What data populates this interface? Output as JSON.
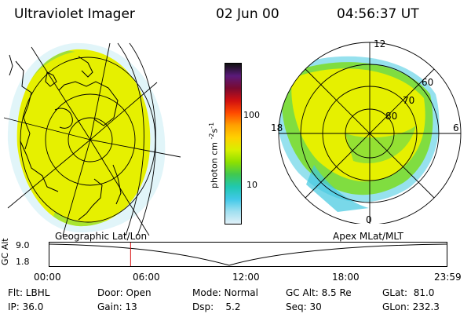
{
  "header": {
    "title": "Ultraviolet Imager",
    "date": "02 Jun 00",
    "time": "04:56:37 UT"
  },
  "colorbar": {
    "unit_label": "photon cm",
    "unit_exp1": "-2",
    "unit_s": "s",
    "unit_exp2": "-1",
    "ticks": [
      "100",
      "10"
    ],
    "colors": [
      "#101010",
      "#5a1a7a",
      "#7a0a30",
      "#d01010",
      "#ff4a00",
      "#ffa000",
      "#ffd000",
      "#d8f000",
      "#8ee000",
      "#40c850",
      "#20c8b0",
      "#40c8e8",
      "#a0e0f0",
      "#e0f0f8"
    ]
  },
  "left_map": {
    "caption": "Geographic Lat/Lon"
  },
  "right_map": {
    "caption": "Apex MLat/MLT",
    "mlt_labels": {
      "top": "12",
      "left": "18",
      "right": "6",
      "bottom": "0"
    },
    "lat_labels": [
      "60",
      "70",
      "80"
    ]
  },
  "strip": {
    "ylabel": "GC Alt",
    "ymax": "9.0",
    "ymin": "1.8",
    "xticks": [
      "00:00",
      "06:00",
      "12:00",
      "18:00",
      "23:59"
    ],
    "current_time_hours": 4.94
  },
  "info": {
    "col1": [
      "Flt: LBHL",
      "IP: 36.0"
    ],
    "col2": [
      "Door: Open",
      "Gain: 13"
    ],
    "col3": [
      "Mode: Normal",
      "Dsp:    5.2"
    ],
    "col4": [
      "GC Alt: 8.5 Re",
      "Seq: 30"
    ],
    "col5": [
      "GLat:  81.0",
      "GLon: 232.3"
    ]
  },
  "colors": {
    "auroral_yellow": "#e8f000",
    "auroral_green": "#80dd40",
    "auroral_cyan": "#40c8e0",
    "marker": "#d81010"
  }
}
